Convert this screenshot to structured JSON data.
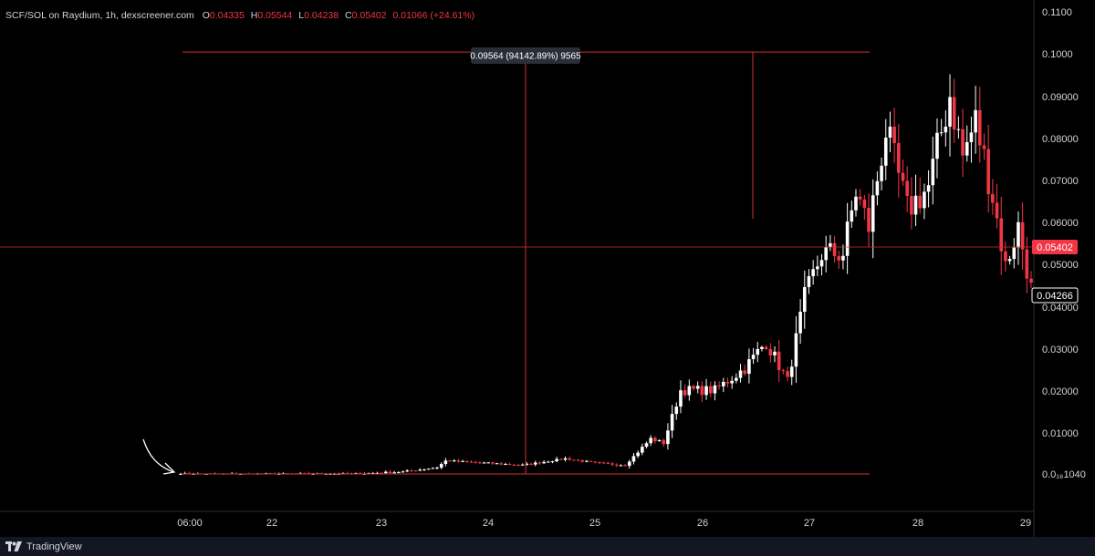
{
  "legend": {
    "symbol": "SCF/SOL on Raydium, 1h, dexscreener.com",
    "o_label": "O",
    "o_value": "0.04335",
    "h_label": "H",
    "h_value": "0.05544",
    "l_label": "L",
    "l_value": "0.04238",
    "c_label": "C",
    "c_value": "0.05402",
    "change": "0.01066 (+24.61%)"
  },
  "measure_label": "0.09564 (94142.89%) 9565",
  "footer": {
    "brand": "TradingView"
  },
  "colors": {
    "up": "#ffffff",
    "down": "#f23645",
    "background": "#000000",
    "price_line": "#f23645",
    "crosshair_label": "#ffffff"
  },
  "chart_data": {
    "type": "candlestick",
    "title": "SCF/SOL on Raydium, 1h, dexscreener.com",
    "y_ticks": [
      "0.1100",
      "0.1000",
      "0.09000",
      "0.08000",
      "0.07000",
      "0.06000",
      "0.05000",
      "0.04000",
      "0.03000",
      "0.02000",
      "0.01000",
      "0.0₁₆1040"
    ],
    "x_ticks": [
      "06:00",
      "22",
      "23",
      "24",
      "25",
      "26",
      "27",
      "28",
      "29"
    ],
    "ylim": [
      0,
      0.1115
    ],
    "last_price_label": "0.05402",
    "crosshair_price_label": "0.04266",
    "measure": {
      "from_price": 0.0,
      "to_price": 0.09564,
      "label": "0.09564 (94142.89%) 9565"
    },
    "candle_count": 200,
    "keypoints": [
      {
        "i": 0,
        "p": 0.0
      },
      {
        "i": 40,
        "p": 0.0
      },
      {
        "i": 52,
        "p": 0.0005
      },
      {
        "i": 60,
        "p": 0.0015
      },
      {
        "i": 62,
        "p": 0.003
      },
      {
        "i": 80,
        "p": 0.002
      },
      {
        "i": 90,
        "p": 0.0035
      },
      {
        "i": 97,
        "p": 0.0025
      },
      {
        "i": 104,
        "p": 0.002
      },
      {
        "i": 110,
        "p": 0.008
      },
      {
        "i": 113,
        "p": 0.007
      },
      {
        "i": 117,
        "p": 0.019
      },
      {
        "i": 125,
        "p": 0.019
      },
      {
        "i": 132,
        "p": 0.024
      },
      {
        "i": 137,
        "p": 0.03
      },
      {
        "i": 142,
        "p": 0.021
      },
      {
        "i": 146,
        "p": 0.04
      },
      {
        "i": 150,
        "p": 0.05
      },
      {
        "i": 155,
        "p": 0.05
      },
      {
        "i": 158,
        "p": 0.064
      },
      {
        "i": 161,
        "p": 0.056
      },
      {
        "i": 165,
        "p": 0.078
      },
      {
        "i": 170,
        "p": 0.06
      },
      {
        "i": 175,
        "p": 0.065
      },
      {
        "i": 180,
        "p": 0.086
      },
      {
        "i": 183,
        "p": 0.072
      },
      {
        "i": 186,
        "p": 0.08
      },
      {
        "i": 190,
        "p": 0.063
      },
      {
        "i": 193,
        "p": 0.047
      },
      {
        "i": 196,
        "p": 0.056
      },
      {
        "i": 199,
        "p": 0.042
      }
    ]
  }
}
